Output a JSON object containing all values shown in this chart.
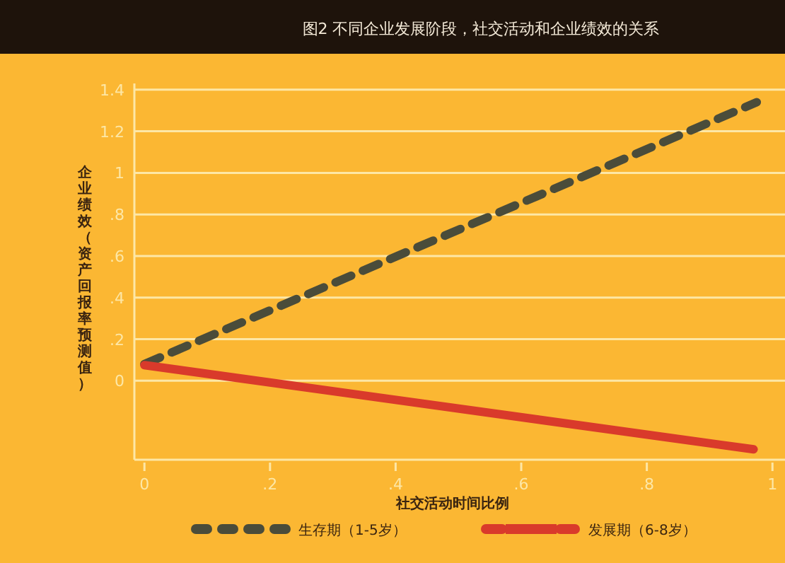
{
  "chart_data": {
    "type": "line",
    "title": "图2  不同企业发展阶段，社交活动和企业绩效的关系",
    "xlabel": "社交活动时间比例",
    "ylabel": "企业绩效（资产回报率预测值）",
    "series": [
      {
        "name": "生存期（1-5岁）",
        "color": "#4a4c3a",
        "line_style": "dashed",
        "x": [
          0,
          0.975
        ],
        "values": [
          0.08,
          1.34
        ]
      },
      {
        "name": "发展期（6-8岁）",
        "color": "#d93a2b",
        "line_style": "solid",
        "x": [
          0,
          0.97
        ],
        "values": [
          0.075,
          -0.33
        ]
      }
    ],
    "xlim": [
      -0.016,
      1.02
    ],
    "ylim": [
      -0.38,
      1.43
    ],
    "xticks": [
      0,
      {
        "value": 0.2,
        "label": ".2"
      },
      {
        "value": 0.4,
        "label": ".4"
      },
      {
        "value": 0.6,
        "label": ".6"
      },
      {
        "value": 0.8,
        "label": ".8"
      },
      1
    ],
    "yticks": [
      0,
      {
        "value": 0.2,
        "label": ".2"
      },
      {
        "value": 0.4,
        "label": ".4"
      },
      {
        "value": 0.6,
        "label": ".6"
      },
      {
        "value": 0.8,
        "label": ".8"
      },
      1,
      1.2,
      1.4
    ],
    "grid": "y",
    "legend": "bottom"
  }
}
